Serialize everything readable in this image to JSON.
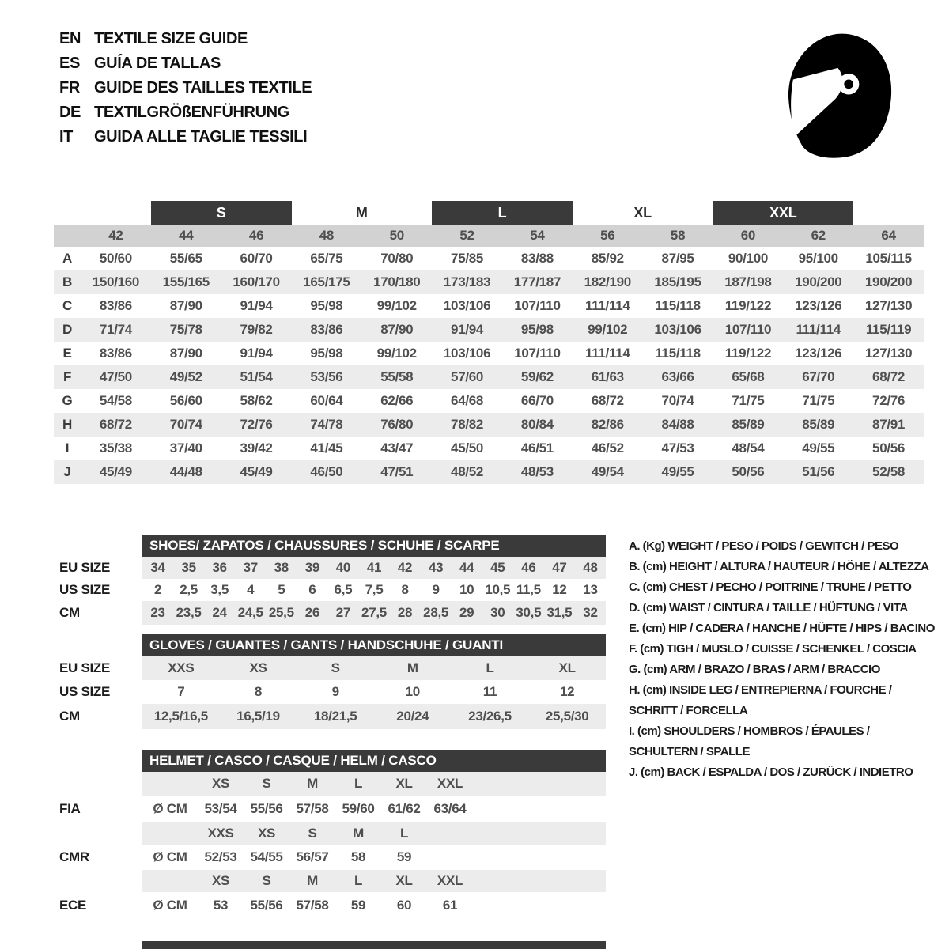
{
  "languages": [
    {
      "code": "EN",
      "title": "TEXTILE SIZE GUIDE"
    },
    {
      "code": "ES",
      "title": "GUÍA DE TALLAS"
    },
    {
      "code": "FR",
      "title": "GUIDE DES TAILLES TEXTILE"
    },
    {
      "code": "DE",
      "title": "TEXTILGRÖßENFÜHRUNG"
    },
    {
      "code": "IT",
      "title": "GUIDA ALLE TAGLIE TESSILI"
    }
  ],
  "icon": "racing-helmet",
  "textile_table": {
    "size_groups": [
      {
        "label": "S"
      },
      {
        "label": "M"
      },
      {
        "label": "L"
      },
      {
        "label": "XL"
      },
      {
        "label": "XXL"
      }
    ],
    "columns": [
      "42",
      "44",
      "46",
      "48",
      "50",
      "52",
      "54",
      "56",
      "58",
      "60",
      "62",
      "64"
    ],
    "rows": [
      {
        "key": "A",
        "values": [
          "50/60",
          "55/65",
          "60/70",
          "65/75",
          "70/80",
          "75/85",
          "83/88",
          "85/92",
          "87/95",
          "90/100",
          "95/100",
          "105/115"
        ]
      },
      {
        "key": "B",
        "values": [
          "150/160",
          "155/165",
          "160/170",
          "165/175",
          "170/180",
          "173/183",
          "177/187",
          "182/190",
          "185/195",
          "187/198",
          "190/200",
          "190/200"
        ]
      },
      {
        "key": "C",
        "values": [
          "83/86",
          "87/90",
          "91/94",
          "95/98",
          "99/102",
          "103/106",
          "107/110",
          "111/114",
          "115/118",
          "119/122",
          "123/126",
          "127/130"
        ]
      },
      {
        "key": "D",
        "values": [
          "71/74",
          "75/78",
          "79/82",
          "83/86",
          "87/90",
          "91/94",
          "95/98",
          "99/102",
          "103/106",
          "107/110",
          "111/114",
          "115/119"
        ]
      },
      {
        "key": "E",
        "values": [
          "83/86",
          "87/90",
          "91/94",
          "95/98",
          "99/102",
          "103/106",
          "107/110",
          "111/114",
          "115/118",
          "119/122",
          "123/126",
          "127/130"
        ]
      },
      {
        "key": "F",
        "values": [
          "47/50",
          "49/52",
          "51/54",
          "53/56",
          "55/58",
          "57/60",
          "59/62",
          "61/63",
          "63/66",
          "65/68",
          "67/70",
          "68/72"
        ]
      },
      {
        "key": "G",
        "values": [
          "54/58",
          "56/60",
          "58/62",
          "60/64",
          "62/66",
          "64/68",
          "66/70",
          "68/72",
          "70/74",
          "71/75",
          "71/75",
          "72/76"
        ]
      },
      {
        "key": "H",
        "values": [
          "68/72",
          "70/74",
          "72/76",
          "74/78",
          "76/80",
          "78/82",
          "80/84",
          "82/86",
          "84/88",
          "85/89",
          "85/89",
          "87/91"
        ]
      },
      {
        "key": "I",
        "values": [
          "35/38",
          "37/40",
          "39/42",
          "41/45",
          "43/47",
          "45/50",
          "46/51",
          "46/52",
          "47/53",
          "48/54",
          "49/55",
          "50/56"
        ]
      },
      {
        "key": "J",
        "values": [
          "45/49",
          "44/48",
          "45/49",
          "46/50",
          "47/51",
          "48/52",
          "48/53",
          "49/54",
          "49/55",
          "50/56",
          "51/56",
          "52/58"
        ]
      }
    ]
  },
  "shoes": {
    "header": "SHOES/ ZAPATOS / CHAUSSURES / SCHUHE / SCARPE",
    "rows": [
      {
        "label": "EU SIZE",
        "values": [
          "34",
          "35",
          "36",
          "37",
          "38",
          "39",
          "40",
          "41",
          "42",
          "43",
          "44",
          "45",
          "46",
          "47",
          "48"
        ]
      },
      {
        "label": "US SIZE",
        "values": [
          "2",
          "2,5",
          "3,5",
          "4",
          "5",
          "6",
          "6,5",
          "7,5",
          "8",
          "9",
          "10",
          "10,5",
          "11,5",
          "12",
          "13"
        ]
      },
      {
        "label": "CM",
        "values": [
          "23",
          "23,5",
          "24",
          "24,5",
          "25,5",
          "26",
          "27",
          "27,5",
          "28",
          "28,5",
          "29",
          "30",
          "30,5",
          "31,5",
          "32"
        ]
      }
    ]
  },
  "gloves": {
    "header": "GLOVES / GUANTES / GANTS / HANDSCHUHE / GUANTI",
    "rows": [
      {
        "label": "EU SIZE",
        "values": [
          "XXS",
          "XS",
          "S",
          "M",
          "L",
          "XL"
        ]
      },
      {
        "label": "US SIZE",
        "values": [
          "7",
          "8",
          "9",
          "10",
          "11",
          "12"
        ]
      },
      {
        "label": "CM",
        "values": [
          "12,5/16,5",
          "16,5/19",
          "18/21,5",
          "20/24",
          "23/26,5",
          "25,5/30"
        ]
      }
    ]
  },
  "helmet": {
    "header": "HELMET / CASCO / CASQUE / HELM / CASCO",
    "standards": [
      {
        "name": "FIA",
        "unit": "Ø CM",
        "sizes": [
          "XS",
          "S",
          "M",
          "L",
          "XL",
          "XXL"
        ],
        "values": [
          "53/54",
          "55/56",
          "57/58",
          "59/60",
          "61/62",
          "63/64"
        ]
      },
      {
        "name": "CMR",
        "unit": "Ø CM",
        "sizes": [
          "XXS",
          "XS",
          "S",
          "M",
          "L",
          ""
        ],
        "values": [
          "52/53",
          "54/55",
          "56/57",
          "58",
          "59",
          ""
        ]
      },
      {
        "name": "ECE",
        "unit": "Ø CM",
        "sizes": [
          "XS",
          "S",
          "M",
          "L",
          "XL",
          "XXL"
        ],
        "values": [
          "53",
          "55/56",
          "57/58",
          "59",
          "60",
          "61"
        ]
      }
    ]
  },
  "legend": {
    "lines": [
      "A. (Kg) WEIGHT / PESO / POIDS / GEWITCH / PESO",
      "B. (cm) HEIGHT / ALTURA / HAUTEUR / HÖHE / ALTEZZA",
      "C. (cm) CHEST / PECHO / POITRINE / TRUHE / PETTO",
      "D. (cm) WAIST / CINTURA / TAILLE / HÜFTUNG / VITA",
      "E. (cm) HIP / CADERA / HANCHE / HÜFTE / HIPS /  BACINO",
      "F. (cm) TIGH / MUSLO / CUISSE / SCHENKEL / COSCIA",
      "G. (cm) ARM  / BRAZO / BRAS / ARM / BRACCIO",
      "H. (cm) INSIDE LEG / ENTREPIERNA / FOURCHE /",
      "SCHRITT / FORCELLA",
      "I.  (cm) SHOULDERS / HOMBROS / ÉPAULES /",
      "SCHULTERN / SPALLE",
      "J. (cm) BACK / ESPALDA / DOS / ZURÜCK / INDIETRO"
    ]
  },
  "colors": {
    "dark_bar": "#3a3a3a",
    "stripe": "#ececec",
    "header_row": "#d2d2d2",
    "text_gray": "#4f4f4f"
  }
}
